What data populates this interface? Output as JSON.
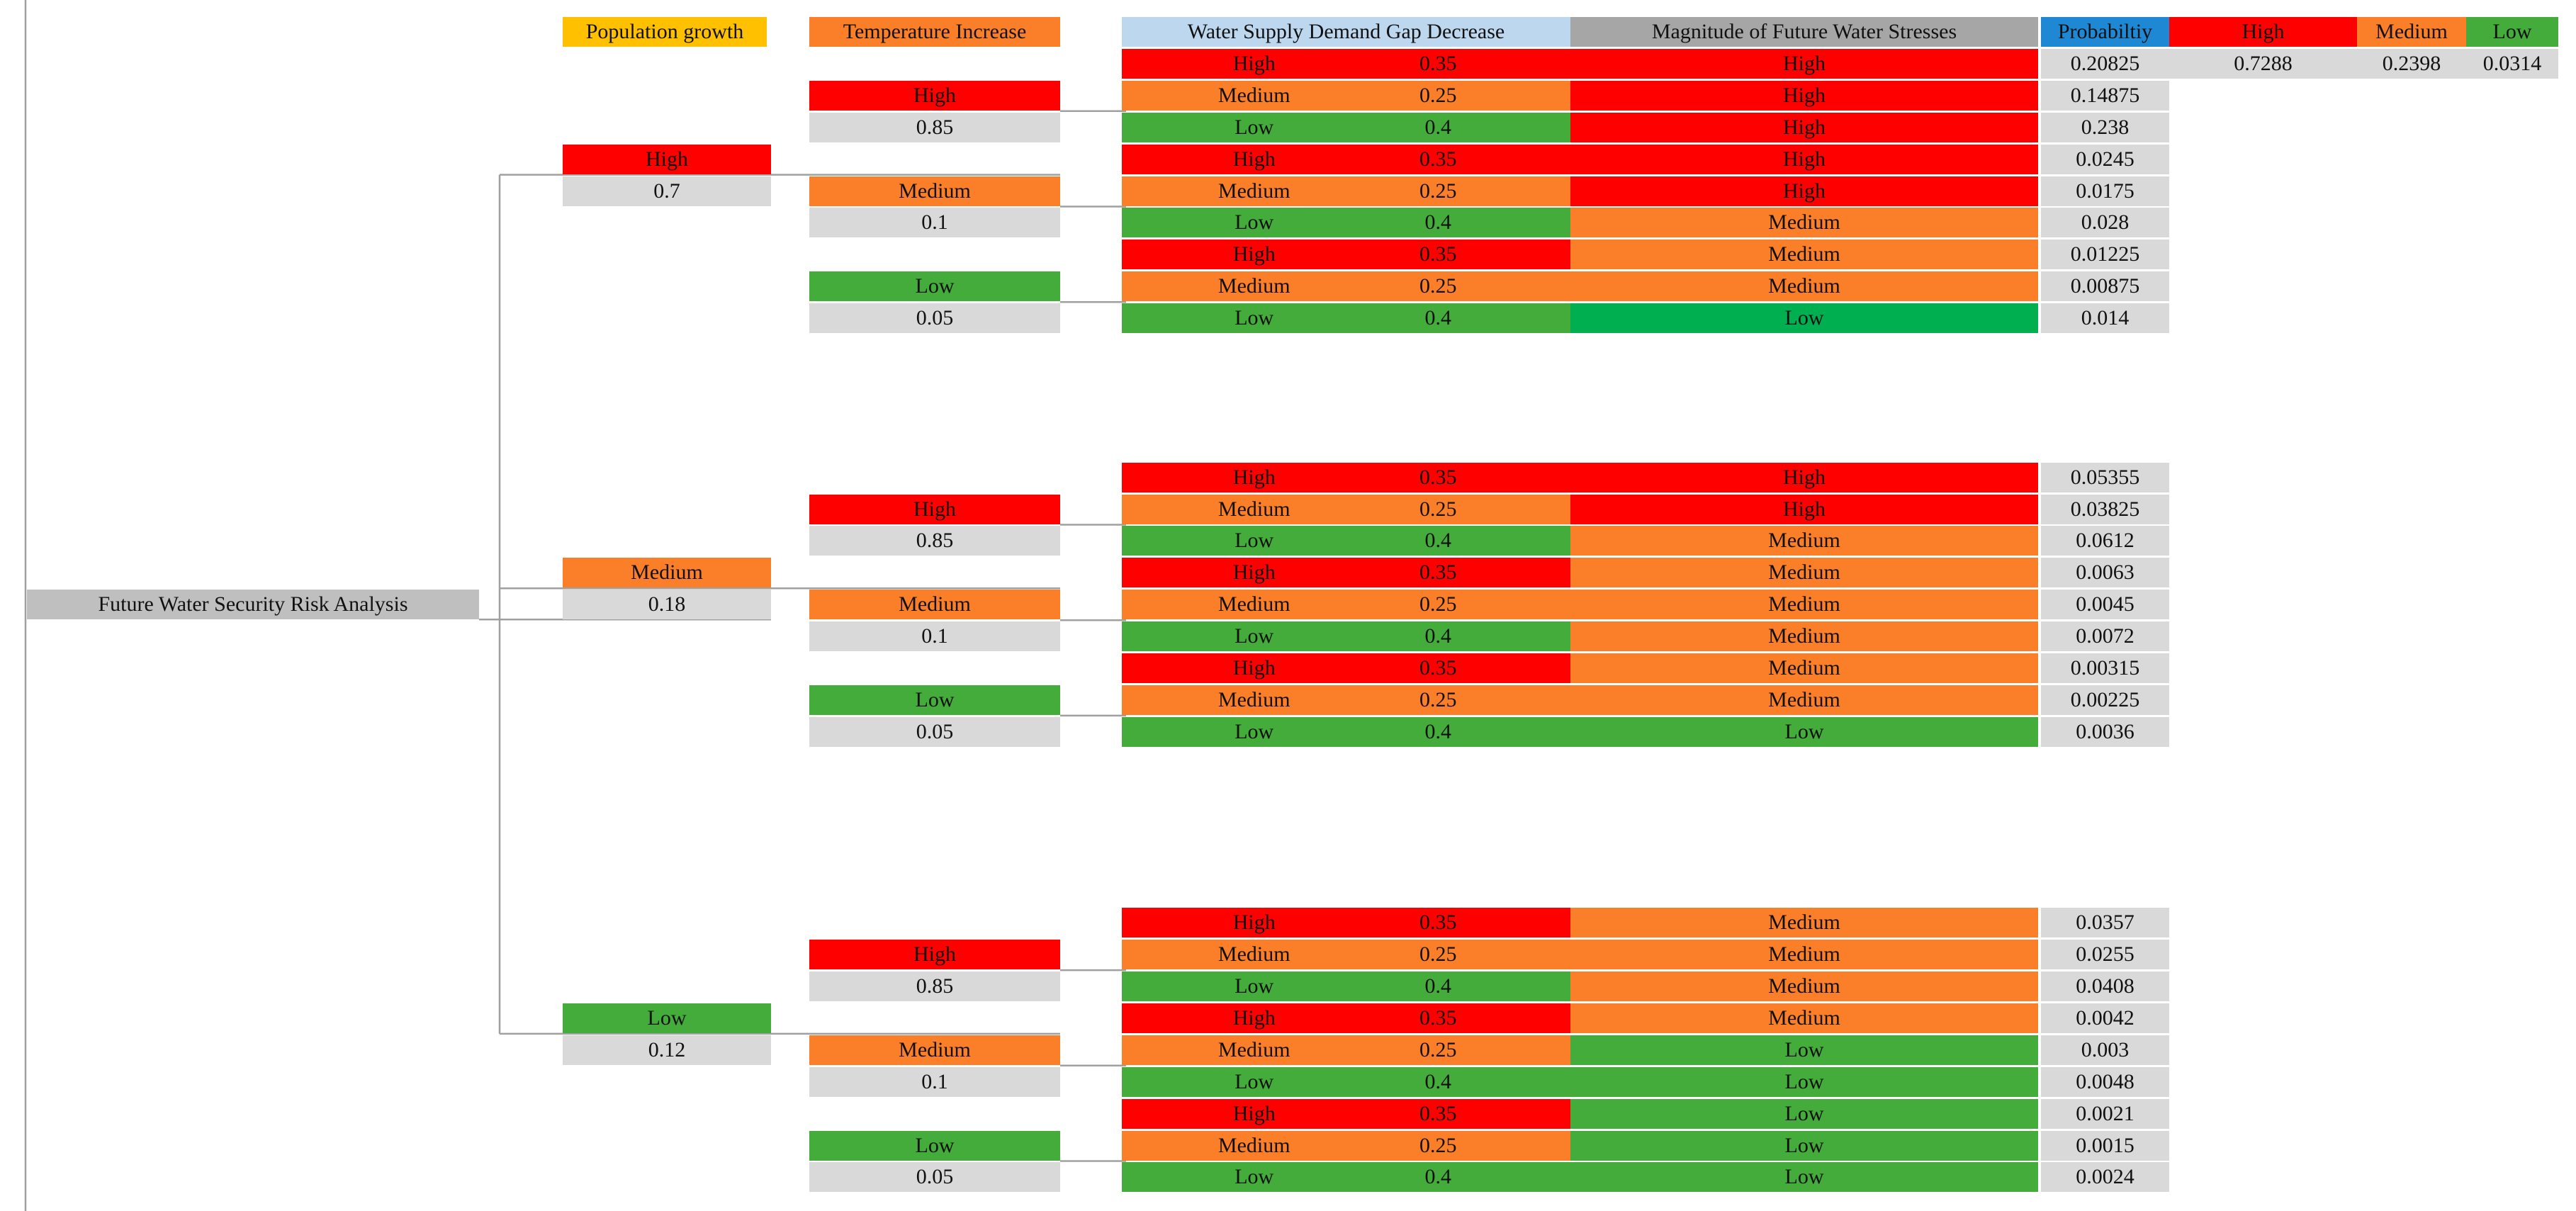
{
  "colors": {
    "high": "#ff0000",
    "medium": "#fb7f28",
    "low": "#44ac3a",
    "low_bright": "#00b050",
    "gray": "#d9d9d9",
    "root_gray": "#bfbfbf",
    "mag_header": "#a6a6a6",
    "supply_header": "#bdd7ee",
    "prob_header": "#1e88d4",
    "pop_header": "#ffc000",
    "connector": "#a0a0a0"
  },
  "root": {
    "label": "Future Water Security Risk Analysis"
  },
  "headers": {
    "population": "Population growth",
    "temperature": "Temperature Increase",
    "supply": "Water Supply Demand Gap Decrease",
    "magnitude": "Magnitude of Future Water Stresses",
    "probability": "Probabiltiy"
  },
  "summary": {
    "labels": [
      "High",
      "Medium",
      "Low"
    ],
    "values": [
      "0.7288",
      "0.2398",
      "0.0314"
    ]
  },
  "population": [
    {
      "label": "High",
      "level": "high",
      "prob": "0.7",
      "temperature": [
        {
          "label": "High",
          "level": "high",
          "prob": "0.85"
        },
        {
          "label": "Medium",
          "level": "medium",
          "prob": "0.1"
        },
        {
          "label": "Low",
          "level": "low",
          "prob": "0.05"
        }
      ]
    },
    {
      "label": "Medium",
      "level": "medium",
      "prob": "0.18",
      "temperature": [
        {
          "label": "High",
          "level": "high",
          "prob": "0.85"
        },
        {
          "label": "Medium",
          "level": "medium",
          "prob": "0.1"
        },
        {
          "label": "Low",
          "level": "low",
          "prob": "0.05"
        }
      ]
    },
    {
      "label": "Low",
      "level": "low",
      "prob": "0.12",
      "temperature": [
        {
          "label": "High",
          "level": "high",
          "prob": "0.85"
        },
        {
          "label": "Medium",
          "level": "medium",
          "prob": "0.1"
        },
        {
          "label": "Low",
          "level": "low",
          "prob": "0.05"
        }
      ]
    }
  ],
  "supply_levels": [
    {
      "label": "High",
      "level": "high",
      "prob": "0.35"
    },
    {
      "label": "Medium",
      "level": "medium",
      "prob": "0.25"
    },
    {
      "label": "Low",
      "level": "low",
      "prob": "0.4"
    }
  ],
  "outcomes": [
    [
      {
        "magnitude": "High",
        "level": "high",
        "prob": "0.20825"
      },
      {
        "magnitude": "High",
        "level": "high",
        "prob": "0.14875"
      },
      {
        "magnitude": "High",
        "level": "high",
        "prob": "0.238"
      },
      {
        "magnitude": "High",
        "level": "high",
        "prob": "0.0245"
      },
      {
        "magnitude": "High",
        "level": "high",
        "prob": "0.0175"
      },
      {
        "magnitude": "Medium",
        "level": "medium",
        "prob": "0.028"
      },
      {
        "magnitude": "Medium",
        "level": "medium",
        "prob": "0.01225"
      },
      {
        "magnitude": "Medium",
        "level": "medium",
        "prob": "0.00875"
      },
      {
        "magnitude": "Low",
        "level": "low_bright",
        "prob": "0.014"
      }
    ],
    [
      {
        "magnitude": "High",
        "level": "high",
        "prob": "0.05355"
      },
      {
        "magnitude": "High",
        "level": "high",
        "prob": "0.03825"
      },
      {
        "magnitude": "Medium",
        "level": "medium",
        "prob": "0.0612"
      },
      {
        "magnitude": "Medium",
        "level": "medium",
        "prob": "0.0063"
      },
      {
        "magnitude": "Medium",
        "level": "medium",
        "prob": "0.0045"
      },
      {
        "magnitude": "Medium",
        "level": "medium",
        "prob": "0.0072"
      },
      {
        "magnitude": "Medium",
        "level": "medium",
        "prob": "0.00315"
      },
      {
        "magnitude": "Medium",
        "level": "medium",
        "prob": "0.00225"
      },
      {
        "magnitude": "Low",
        "level": "low",
        "prob": "0.0036"
      }
    ],
    [
      {
        "magnitude": "Medium",
        "level": "medium",
        "prob": "0.0357"
      },
      {
        "magnitude": "Medium",
        "level": "medium",
        "prob": "0.0255"
      },
      {
        "magnitude": "Medium",
        "level": "medium",
        "prob": "0.0408"
      },
      {
        "magnitude": "Medium",
        "level": "medium",
        "prob": "0.0042"
      },
      {
        "magnitude": "Low",
        "level": "low",
        "prob": "0.003"
      },
      {
        "magnitude": "Low",
        "level": "low",
        "prob": "0.0048"
      },
      {
        "magnitude": "Low",
        "level": "low",
        "prob": "0.0021"
      },
      {
        "magnitude": "Low",
        "level": "low",
        "prob": "0.0015"
      },
      {
        "magnitude": "Low",
        "level": "low",
        "prob": "0.0024"
      }
    ]
  ]
}
